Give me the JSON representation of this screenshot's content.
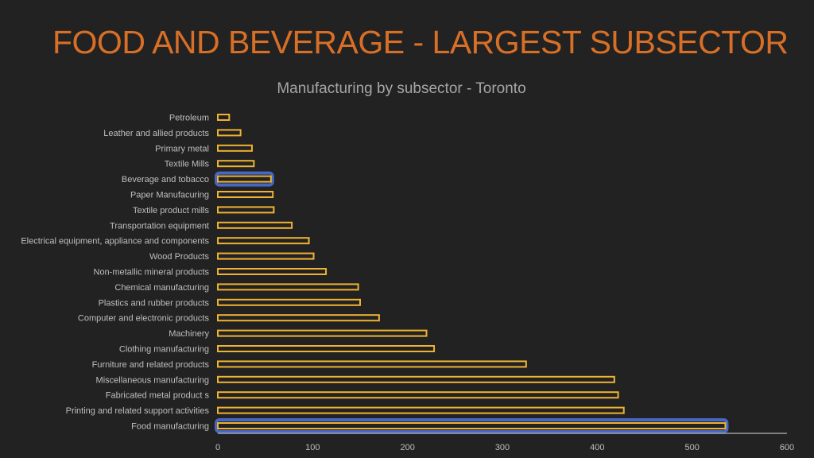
{
  "slide": {
    "title": "FOOD AND BEVERAGE - LARGEST SUBSECTOR"
  },
  "colors": {
    "background": "#222222",
    "title": "#d86f26",
    "bar_outline": "#f0b232",
    "highlight_glow": "#4a6fd6",
    "axis": "#d9d9d9",
    "label": "#bfbfbf"
  },
  "chart_data": {
    "type": "bar",
    "orientation": "horizontal",
    "title": "Manufacturing by subsector - Toronto",
    "categories": [
      "Petroleum",
      "Leather and allied products",
      "Primary metal",
      "Textile Mills",
      "Beverage and tobacco",
      "Paper Manufacuring",
      "Textile product mills",
      "Transportation equipment",
      "Electrical equipment, appliance and components",
      "Wood Products",
      "Non-metallic mineral products",
      "Chemical manufacturing",
      "Plastics and rubber products",
      "Computer and electronic products",
      "Machinery",
      "Clothing manufacturing",
      "Furniture and related products",
      "Miscellaneous manufacturing",
      "Fabricated metal product s",
      "Printing and related support activities",
      "Food manufacturing"
    ],
    "values": [
      12,
      24,
      36,
      38,
      56,
      58,
      59,
      78,
      96,
      101,
      114,
      148,
      150,
      170,
      220,
      228,
      325,
      418,
      422,
      428,
      535
    ],
    "highlighted": [
      "Beverage and tobacco",
      "Food manufacturing"
    ],
    "xlim": [
      0,
      600
    ],
    "x_ticks": [
      0,
      100,
      200,
      300,
      400,
      500,
      600
    ],
    "xlabel": "",
    "ylabel": "",
    "grid": false,
    "legend": "none"
  }
}
